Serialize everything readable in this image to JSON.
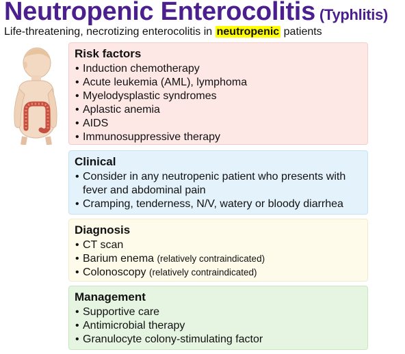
{
  "header": {
    "title": "Neutropenic Enterocolitis",
    "title_suffix": "(Typhlitis)",
    "subtitle_before": "Life-threatening, necrotizing enterocolitis in",
    "subtitle_highlight": "neutropenic",
    "subtitle_after": "patients"
  },
  "colors": {
    "title": "#4b1f8e",
    "highlight": "#ffff00",
    "risk_bg": "#fde8e6",
    "clinical_bg": "#e3f2fb",
    "diagnosis_bg": "#fffbea",
    "management_bg": "#e6f5e2"
  },
  "illustration": {
    "icon": "child-colon-illustration"
  },
  "risk": {
    "heading": "Risk factors",
    "items": [
      "Induction chemotherapy",
      "Acute leukemia (AML), lymphoma",
      "Myelodysplastic syndromes",
      "Aplastic anemia",
      "AIDS",
      "Immunosuppressive therapy"
    ]
  },
  "clinical": {
    "heading": "Clinical",
    "items": [
      "Consider in any neutropenic patient who presents with fever and abdominal pain",
      "Cramping, tenderness, N/V, watery or bloody diarrhea"
    ]
  },
  "diagnosis": {
    "heading": "Diagnosis",
    "items": [
      {
        "text": "CT scan",
        "note": ""
      },
      {
        "text": "Barium enema",
        "note": "(relatively contraindicated)"
      },
      {
        "text": "Colonoscopy",
        "note": "(relatively contraindicated)"
      }
    ]
  },
  "management": {
    "heading": "Management",
    "items": [
      "Supportive care",
      "Antimicrobial therapy",
      "Granulocyte colony-stimulating factor"
    ]
  }
}
